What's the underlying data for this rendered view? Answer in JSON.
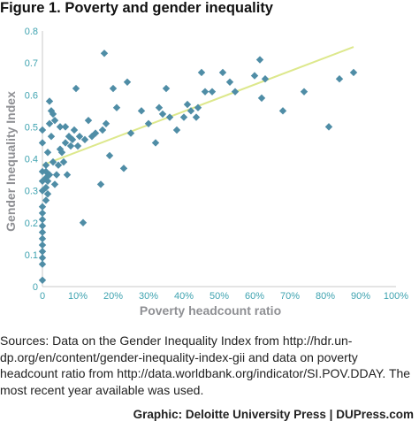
{
  "figure": {
    "title": "Figure 1. Poverty and gender inequality",
    "sources": "Sources: Data on the Gender Inequality Index from http://hdr.un-dp.org/en/content/gender-inequality-index-gii and data on poverty headcount ratio from http://data.worldbank.org/indicator/SI.POV.DDAY. The most recent year available was used.",
    "credit": "Graphic: Deloitte University Press  |  DUPress.com"
  },
  "colors": {
    "points": "#4f8da6",
    "trendline": "#dde88c",
    "tick_labels": "#3fa3b0",
    "axis_titles": "#8f9094",
    "axes": "#c8c8c8"
  },
  "chart_data": {
    "type": "scatter",
    "xlabel": "Poverty headcount ratio",
    "ylabel": "Gender Inequality Index",
    "xlim": [
      0,
      1
    ],
    "ylim": [
      0,
      0.8
    ],
    "x_ticks": [
      "0",
      "10%",
      "20%",
      "30%",
      "40%",
      "50%",
      "60%",
      "70%",
      "80%",
      "90%",
      "100%"
    ],
    "y_ticks": [
      "0",
      "0.1",
      "0.2",
      "0.3",
      "0.4",
      "0.5",
      "0.6",
      "0.7",
      "0.8"
    ],
    "grid": false,
    "trendline": {
      "x": [
        0,
        0.88
      ],
      "y": [
        0.38,
        0.75
      ]
    },
    "points": [
      [
        0.0,
        0.02
      ],
      [
        0.0,
        0.07
      ],
      [
        0.0,
        0.09
      ],
      [
        0.0,
        0.11
      ],
      [
        0.0,
        0.13
      ],
      [
        0.0,
        0.15
      ],
      [
        0.0,
        0.17
      ],
      [
        0.0,
        0.19
      ],
      [
        0.0,
        0.21
      ],
      [
        0.0,
        0.23
      ],
      [
        0.0,
        0.25
      ],
      [
        0.0,
        0.3
      ],
      [
        0.0,
        0.33
      ],
      [
        0.0,
        0.36
      ],
      [
        0.0,
        0.45
      ],
      [
        0.0,
        0.49
      ],
      [
        0.01,
        0.27
      ],
      [
        0.01,
        0.31
      ],
      [
        0.01,
        0.34
      ],
      [
        0.01,
        0.36
      ],
      [
        0.01,
        0.38
      ],
      [
        0.015,
        0.29
      ],
      [
        0.015,
        0.33
      ],
      [
        0.015,
        0.42
      ],
      [
        0.02,
        0.35
      ],
      [
        0.02,
        0.51
      ],
      [
        0.02,
        0.58
      ],
      [
        0.025,
        0.55
      ],
      [
        0.025,
        0.47
      ],
      [
        0.03,
        0.39
      ],
      [
        0.03,
        0.54
      ],
      [
        0.035,
        0.32
      ],
      [
        0.035,
        0.52
      ],
      [
        0.04,
        0.35
      ],
      [
        0.045,
        0.38
      ],
      [
        0.05,
        0.5
      ],
      [
        0.05,
        0.43
      ],
      [
        0.055,
        0.42
      ],
      [
        0.06,
        0.39
      ],
      [
        0.065,
        0.45
      ],
      [
        0.065,
        0.5
      ],
      [
        0.07,
        0.35
      ],
      [
        0.075,
        0.47
      ],
      [
        0.08,
        0.44
      ],
      [
        0.085,
        0.46
      ],
      [
        0.09,
        0.49
      ],
      [
        0.095,
        0.62
      ],
      [
        0.1,
        0.44
      ],
      [
        0.105,
        0.47
      ],
      [
        0.115,
        0.2
      ],
      [
        0.12,
        0.46
      ],
      [
        0.13,
        0.52
      ],
      [
        0.14,
        0.47
      ],
      [
        0.15,
        0.48
      ],
      [
        0.165,
        0.32
      ],
      [
        0.17,
        0.49
      ],
      [
        0.175,
        0.73
      ],
      [
        0.18,
        0.51
      ],
      [
        0.19,
        0.41
      ],
      [
        0.2,
        0.62
      ],
      [
        0.21,
        0.56
      ],
      [
        0.23,
        0.37
      ],
      [
        0.24,
        0.64
      ],
      [
        0.25,
        0.48
      ],
      [
        0.28,
        0.55
      ],
      [
        0.3,
        0.51
      ],
      [
        0.32,
        0.45
      ],
      [
        0.33,
        0.56
      ],
      [
        0.34,
        0.54
      ],
      [
        0.35,
        0.62
      ],
      [
        0.36,
        0.53
      ],
      [
        0.38,
        0.49
      ],
      [
        0.4,
        0.53
      ],
      [
        0.41,
        0.57
      ],
      [
        0.42,
        0.55
      ],
      [
        0.435,
        0.53
      ],
      [
        0.44,
        0.56
      ],
      [
        0.45,
        0.67
      ],
      [
        0.46,
        0.61
      ],
      [
        0.48,
        0.61
      ],
      [
        0.51,
        0.67
      ],
      [
        0.53,
        0.64
      ],
      [
        0.545,
        0.61
      ],
      [
        0.6,
        0.66
      ],
      [
        0.615,
        0.71
      ],
      [
        0.62,
        0.59
      ],
      [
        0.63,
        0.65
      ],
      [
        0.68,
        0.55
      ],
      [
        0.74,
        0.61
      ],
      [
        0.81,
        0.5
      ],
      [
        0.84,
        0.65
      ],
      [
        0.88,
        0.67
      ]
    ]
  }
}
